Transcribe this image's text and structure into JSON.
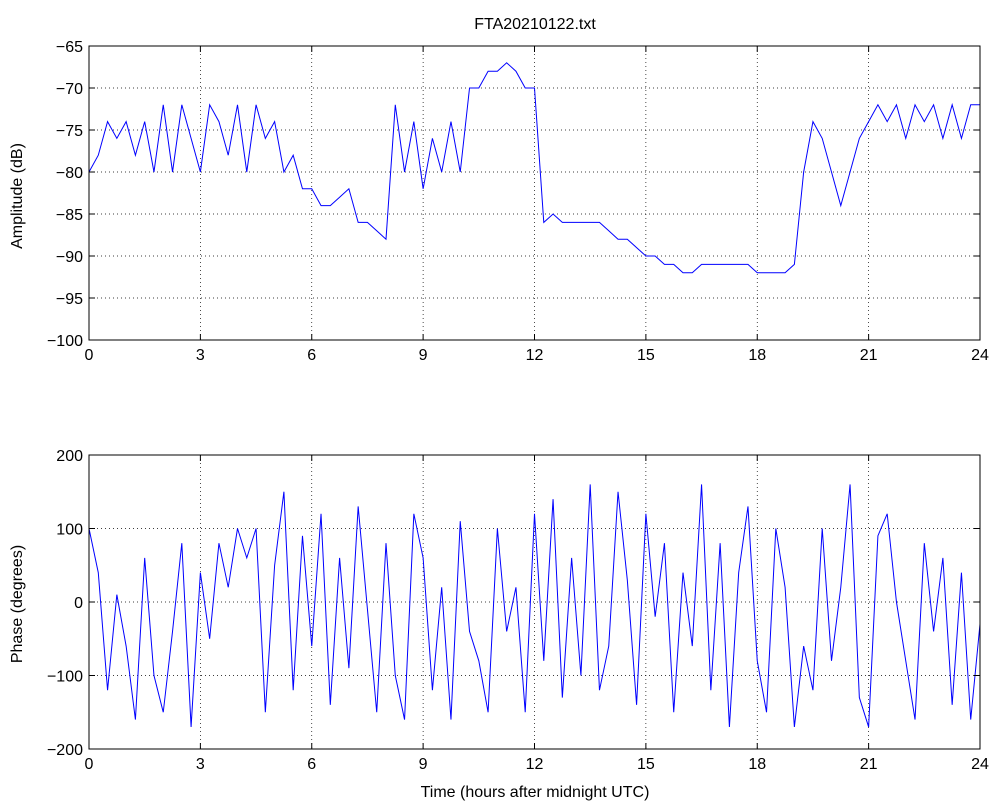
{
  "figure": {
    "title": "FTA20210122.txt"
  },
  "chart_data": [
    {
      "type": "line",
      "title": "FTA20210122.txt",
      "xlabel": "",
      "ylabel": "Amplitude (dB)",
      "xlim": [
        0,
        24
      ],
      "ylim": [
        -100,
        -65
      ],
      "xticks": [
        0,
        3,
        6,
        9,
        12,
        15,
        18,
        21,
        24
      ],
      "yticks": [
        -100,
        -95,
        -90,
        -85,
        -80,
        -75,
        -70,
        -65
      ],
      "grid": true,
      "line_color": "#0000ff",
      "series": [
        {
          "x": [
            0.0,
            0.25,
            0.5,
            0.75,
            1.0,
            1.25,
            1.5,
            1.75,
            2.0,
            2.25,
            2.5,
            2.75,
            3.0,
            3.25,
            3.5,
            3.75,
            4.0,
            4.25,
            4.5,
            4.75,
            5.0,
            5.25,
            5.5,
            5.75,
            6.0,
            6.25,
            6.5,
            6.75,
            7.0,
            7.25,
            7.5,
            7.75,
            8.0,
            8.25,
            8.5,
            8.75,
            9.0,
            9.25,
            9.5,
            9.75,
            10.0,
            10.25,
            10.5,
            10.75,
            11.0,
            11.25,
            11.5,
            11.75,
            12.0,
            12.25,
            12.5,
            12.75,
            13.0,
            13.25,
            13.5,
            13.75,
            14.0,
            14.25,
            14.5,
            14.75,
            15.0,
            15.25,
            15.5,
            15.75,
            16.0,
            16.25,
            16.5,
            16.75,
            17.0,
            17.25,
            17.5,
            17.75,
            18.0,
            18.25,
            18.5,
            18.75,
            19.0,
            19.25,
            19.5,
            19.75,
            20.0,
            20.25,
            20.5,
            20.75,
            21.0,
            21.25,
            21.5,
            21.75,
            22.0,
            22.25,
            22.5,
            22.75,
            23.0,
            23.25,
            23.5,
            23.75,
            24.0
          ],
          "y": [
            -80,
            -78,
            -74,
            -76,
            -74,
            -78,
            -74,
            -80,
            -72,
            -80,
            -72,
            -76,
            -80,
            -72,
            -74,
            -78,
            -72,
            -80,
            -72,
            -76,
            -74,
            -80,
            -78,
            -82,
            -82,
            -84,
            -84,
            -83,
            -82,
            -86,
            -86,
            -87,
            -88,
            -72,
            -80,
            -74,
            -82,
            -76,
            -80,
            -74,
            -80,
            -70,
            -70,
            -68,
            -68,
            -67,
            -68,
            -70,
            -70,
            -86,
            -85,
            -86,
            -86,
            -86,
            -86,
            -86,
            -87,
            -88,
            -88,
            -89,
            -90,
            -90,
            -91,
            -91,
            -92,
            -92,
            -91,
            -91,
            -91,
            -91,
            -91,
            -91,
            -92,
            -92,
            -92,
            -92,
            -91,
            -80,
            -74,
            -76,
            -80,
            -84,
            -80,
            -76,
            -74,
            -72,
            -74,
            -72,
            -76,
            -72,
            -74,
            -72,
            -76,
            -72,
            -76,
            -72,
            -72
          ]
        }
      ]
    },
    {
      "type": "line",
      "title": "",
      "xlabel": "Time (hours after midnight UTC)",
      "ylabel": "Phase (degrees)",
      "xlim": [
        0,
        24
      ],
      "ylim": [
        -200,
        200
      ],
      "xticks": [
        0,
        3,
        6,
        9,
        12,
        15,
        18,
        21,
        24
      ],
      "yticks": [
        -200,
        -100,
        0,
        100,
        200
      ],
      "grid": true,
      "line_color": "#0000ff",
      "series": [
        {
          "x": [
            0.0,
            0.25,
            0.5,
            0.75,
            1.0,
            1.25,
            1.5,
            1.75,
            2.0,
            2.25,
            2.5,
            2.75,
            3.0,
            3.25,
            3.5,
            3.75,
            4.0,
            4.25,
            4.5,
            4.75,
            5.0,
            5.25,
            5.5,
            5.75,
            6.0,
            6.25,
            6.5,
            6.75,
            7.0,
            7.25,
            7.5,
            7.75,
            8.0,
            8.25,
            8.5,
            8.75,
            9.0,
            9.25,
            9.5,
            9.75,
            10.0,
            10.25,
            10.5,
            10.75,
            11.0,
            11.25,
            11.5,
            11.75,
            12.0,
            12.25,
            12.5,
            12.75,
            13.0,
            13.25,
            13.5,
            13.75,
            14.0,
            14.25,
            14.5,
            14.75,
            15.0,
            15.25,
            15.5,
            15.75,
            16.0,
            16.25,
            16.5,
            16.75,
            17.0,
            17.25,
            17.5,
            17.75,
            18.0,
            18.25,
            18.5,
            18.75,
            19.0,
            19.25,
            19.5,
            19.75,
            20.0,
            20.25,
            20.5,
            20.75,
            21.0,
            21.25,
            21.5,
            21.75,
            22.0,
            22.25,
            22.5,
            22.75,
            23.0,
            23.25,
            23.5,
            23.75,
            24.0
          ],
          "y": [
            100,
            40,
            -120,
            10,
            -60,
            -160,
            60,
            -100,
            -150,
            -40,
            80,
            -170,
            40,
            -50,
            80,
            20,
            100,
            60,
            100,
            -150,
            50,
            150,
            -120,
            90,
            -60,
            120,
            -140,
            60,
            -90,
            130,
            -10,
            -150,
            80,
            -100,
            -160,
            120,
            60,
            -120,
            20,
            -160,
            110,
            -40,
            -80,
            -150,
            100,
            -40,
            20,
            -150,
            120,
            -80,
            140,
            -130,
            60,
            -100,
            160,
            -120,
            -60,
            150,
            30,
            -140,
            120,
            -20,
            80,
            -150,
            40,
            -60,
            160,
            -120,
            80,
            -170,
            40,
            130,
            -80,
            -150,
            100,
            20,
            -170,
            -60,
            -120,
            100,
            -80,
            20,
            160,
            -130,
            -170,
            90,
            120,
            0,
            -80,
            -160,
            80,
            -40,
            60,
            -140,
            40,
            -160,
            -30
          ]
        }
      ]
    }
  ]
}
